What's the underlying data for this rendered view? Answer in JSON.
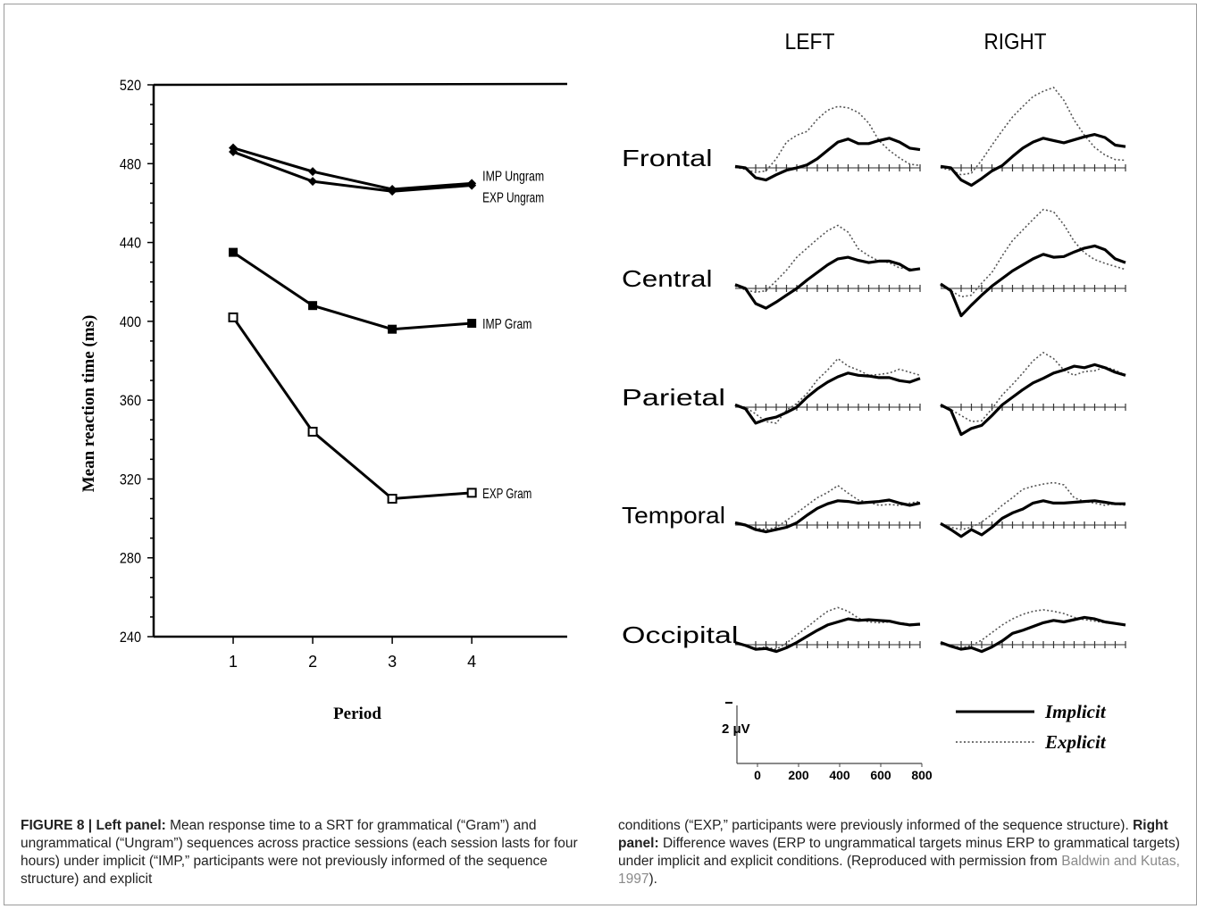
{
  "figure_number": "FIGURE 8 |",
  "caption": {
    "left_label": "Left panel:",
    "left_text": "Mean response time to a SRT for grammatical (“Gram”) and ungrammatical (“Ungram”) sequences across practice sessions (each session lasts for four hours) under implicit (“IMP,” participants were not previously informed of the sequence structure) and explicit",
    "right_text_1": "conditions (“EXP,” participants were previously informed of the sequence structure).",
    "right_label": "Right panel:",
    "right_text_2": "Difference waves (ERP to ungrammatical targets minus ERP to grammatical targets) under implicit and explicit conditions. (Reproduced with permission from",
    "reference": "Baldwin and Kutas, 1997",
    "end": ")."
  },
  "chart_data": [
    {
      "type": "line",
      "xlabel": "Period",
      "ylabel": "Mean reaction time (ms)",
      "x": [
        1,
        2,
        3,
        4
      ],
      "xticks": [
        "1",
        "2",
        "3",
        "4"
      ],
      "yticks": [
        "520",
        "480",
        "440",
        "400",
        "360",
        "320",
        "280",
        "240"
      ],
      "ylim": [
        240,
        520
      ],
      "xlim": [
        0,
        5.2
      ],
      "series": [
        {
          "name": "IMP Ungram",
          "values": [
            488,
            476,
            467,
            470
          ],
          "marker": "diamond"
        },
        {
          "name": "EXP Ungram",
          "values": [
            486,
            471,
            466,
            469
          ],
          "marker": "diamond"
        },
        {
          "name": "IMP Gram",
          "values": [
            435,
            408,
            396,
            399
          ],
          "marker": "filled-square"
        },
        {
          "name": "EXP Gram",
          "values": [
            402,
            344,
            310,
            313
          ],
          "marker": "open-square"
        }
      ]
    },
    {
      "type": "line",
      "columns": [
        "LEFT",
        "RIGHT"
      ],
      "rows": [
        "Frontal",
        "Central",
        "Parietal",
        "Temporal",
        "Occipital"
      ],
      "x_axis": {
        "ticks": [
          "0",
          "200",
          "400",
          "600",
          "800"
        ],
        "range": [
          -100,
          800
        ],
        "unit": "ms"
      },
      "y_scale_label": "2 μV",
      "legend": [
        {
          "name": "Implicit",
          "style": "solid"
        },
        {
          "name": "Explicit",
          "style": "dotted"
        }
      ],
      "x": [
        -100,
        -50,
        0,
        50,
        100,
        150,
        200,
        250,
        300,
        350,
        400,
        450,
        500,
        550,
        600,
        650,
        700,
        750,
        800
      ],
      "waves": {
        "Frontal": {
          "LEFT": {
            "Implicit": [
              0.2,
              0,
              -1.3,
              -1.6,
              -0.9,
              -0.3,
              0,
              0.4,
              1.2,
              2.3,
              3.4,
              3.8,
              3.2,
              3.2,
              3.6,
              3.9,
              3.4,
              2.6,
              2.4
            ],
            "Explicit": [
              0.1,
              -0.2,
              -0.6,
              -0.4,
              1.2,
              3.4,
              4.3,
              4.8,
              6.4,
              7.6,
              8.1,
              7.9,
              7.3,
              5.9,
              3.6,
              2.3,
              1.3,
              0.5,
              0.3
            ]
          },
          "RIGHT": {
            "Implicit": [
              0.2,
              0,
              -1.6,
              -2.3,
              -1.4,
              -0.4,
              0.3,
              1.5,
              2.6,
              3.4,
              3.9,
              3.6,
              3.3,
              3.7,
              4.1,
              4.4,
              4,
              3,
              2.8
            ],
            "Explicit": [
              0,
              -0.3,
              -0.9,
              -0.7,
              1,
              3,
              4.9,
              6.7,
              8.1,
              9.4,
              10.1,
              10.6,
              8.9,
              6.3,
              4.3,
              2.7,
              1.7,
              1.1,
              1
            ]
          }
        },
        "Central": {
          "LEFT": {
            "Implicit": [
              0.5,
              0,
              -2,
              -2.6,
              -1.8,
              -0.9,
              0,
              1.1,
              2.1,
              3.1,
              3.9,
              4.1,
              3.7,
              3.4,
              3.6,
              3.6,
              3.2,
              2.4,
              2.6
            ],
            "Explicit": [
              0.3,
              -0.2,
              -0.5,
              -0.3,
              1,
              2.4,
              4.1,
              5.3,
              6.5,
              7.6,
              8.3,
              7.4,
              5.2,
              4.3,
              3.6,
              3.4,
              2.7,
              2.6,
              2.5
            ]
          },
          "RIGHT": {
            "Implicit": [
              0.6,
              -0.3,
              -3.6,
              -2.2,
              -0.9,
              0.3,
              1.3,
              2.3,
              3.1,
              3.9,
              4.5,
              4.1,
              4.2,
              4.8,
              5.3,
              5.6,
              5.1,
              3.9,
              3.4
            ],
            "Explicit": [
              0.3,
              -0.3,
              -1.1,
              -0.9,
              0.7,
              2.1,
              4.3,
              6.3,
              7.7,
              9.1,
              10.4,
              10.1,
              8.4,
              6.2,
              4.7,
              3.8,
              3.3,
              2.9,
              2.5
            ]
          }
        },
        "Parietal": {
          "LEFT": {
            "Implicit": [
              0.3,
              -0.2,
              -2.1,
              -1.6,
              -1.3,
              -0.7,
              0,
              1.3,
              2.4,
              3.3,
              4,
              4.5,
              4.2,
              4.1,
              3.9,
              3.9,
              3.5,
              3.3,
              3.8
            ],
            "Explicit": [
              0.2,
              0,
              -0.9,
              -1.9,
              -2.1,
              -0.4,
              0.5,
              1.8,
              3.6,
              4.9,
              6.4,
              5.4,
              4.9,
              4.2,
              4.3,
              4.5,
              5,
              4.6,
              4.2
            ]
          },
          "RIGHT": {
            "Implicit": [
              0.3,
              -0.4,
              -3.6,
              -2.8,
              -2.4,
              -1.1,
              0.3,
              1.3,
              2.3,
              3.2,
              3.8,
              4.5,
              4.9,
              5.4,
              5.2,
              5.6,
              5.2,
              4.6,
              4.2
            ],
            "Explicit": [
              0.2,
              -0.3,
              -1.1,
              -1.9,
              -1.8,
              -0.2,
              1.6,
              3,
              4.5,
              6.1,
              7.2,
              6.4,
              4.9,
              4.2,
              4.7,
              4.8,
              5.3,
              4.9,
              4.2
            ]
          }
        },
        "Temporal": {
          "LEFT": {
            "Implicit": [
              0.3,
              0,
              -0.6,
              -0.9,
              -0.6,
              -0.3,
              0.3,
              1.3,
              2.2,
              2.8,
              3.2,
              3.1,
              2.9,
              3,
              3.1,
              3.3,
              2.9,
              2.6,
              2.9
            ],
            "Explicit": [
              0.2,
              0,
              -0.4,
              -0.6,
              -0.3,
              0.6,
              1.6,
              2.6,
              3.6,
              4.3,
              5.2,
              4.2,
              3.3,
              3,
              2.6,
              2.7,
              2.6,
              2.9,
              3.1
            ]
          },
          "RIGHT": {
            "Implicit": [
              0.2,
              -0.6,
              -1.5,
              -0.6,
              -1.3,
              -0.3,
              0.9,
              1.6,
              2.1,
              2.9,
              3.2,
              2.9,
              2.9,
              3,
              3.1,
              3.2,
              3,
              2.8,
              2.8
            ],
            "Explicit": [
              0.2,
              -0.3,
              -0.6,
              -0.3,
              0.4,
              1.4,
              2.6,
              3.6,
              4.7,
              5.1,
              5.4,
              5.6,
              5.3,
              3.6,
              3.1,
              2.9,
              2.6,
              2.8,
              2.6
            ]
          }
        },
        "Occipital": {
          "LEFT": {
            "Implicit": [
              0.3,
              -0.1,
              -0.6,
              -0.5,
              -0.9,
              -0.4,
              0.3,
              1.1,
              1.9,
              2.6,
              3,
              3.4,
              3.2,
              3.3,
              3.2,
              3.1,
              2.8,
              2.6,
              2.7
            ],
            "Explicit": [
              0.1,
              -0.1,
              -0.5,
              -0.3,
              -0.6,
              0.2,
              1.3,
              2.3,
              3.4,
              4.4,
              4.9,
              4.4,
              3.5,
              3,
              2.9,
              3,
              2.9,
              2.7,
              2.6
            ]
          },
          "RIGHT": {
            "Implicit": [
              0.3,
              -0.2,
              -0.6,
              -0.4,
              -0.9,
              -0.3,
              0.5,
              1.5,
              1.9,
              2.4,
              2.9,
              3.2,
              3,
              3.3,
              3.6,
              3.4,
              3,
              2.8,
              2.6
            ],
            "Explicit": [
              0.1,
              -0.1,
              -0.4,
              -0.1,
              0.6,
              1.6,
              2.6,
              3.4,
              4,
              4.4,
              4.6,
              4.4,
              4.1,
              3.6,
              3.3,
              3.1,
              2.9,
              2.8,
              2.7
            ]
          }
        }
      }
    }
  ]
}
